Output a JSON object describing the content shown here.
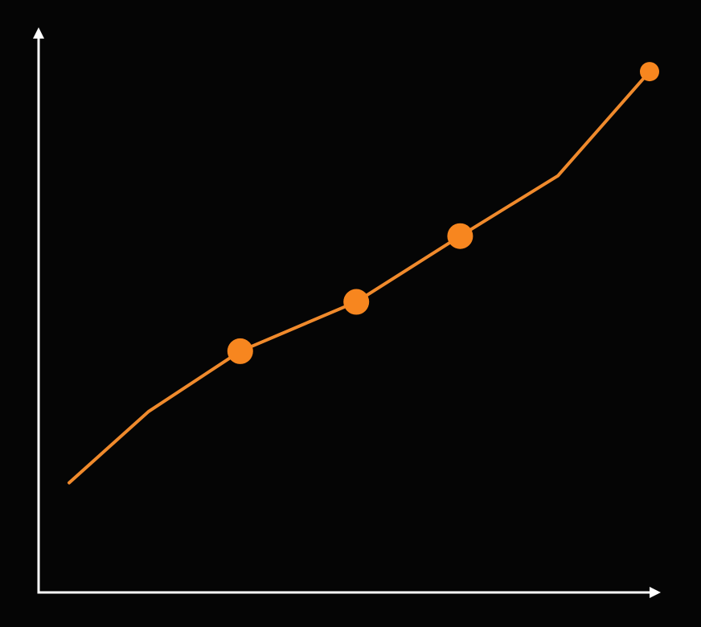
{
  "chart_data": {
    "type": "line",
    "title": "",
    "xlabel": "",
    "ylabel": "",
    "grid": false,
    "legend": "none",
    "xlim": [
      0,
      10
    ],
    "ylim": [
      0,
      10
    ],
    "series": [
      {
        "x": [
          0.5,
          1.8,
          3.3,
          5.2,
          6.9,
          8.5,
          10
        ],
        "y": [
          2.0,
          3.3,
          4.4,
          5.3,
          6.5,
          7.6,
          9.5
        ],
        "markers": [
          false,
          false,
          true,
          true,
          true,
          false,
          true
        ]
      }
    ],
    "colors": {
      "background": "#050505",
      "axis": "#ffffff",
      "line": "#f08a2c",
      "marker": "#f7861f"
    }
  }
}
